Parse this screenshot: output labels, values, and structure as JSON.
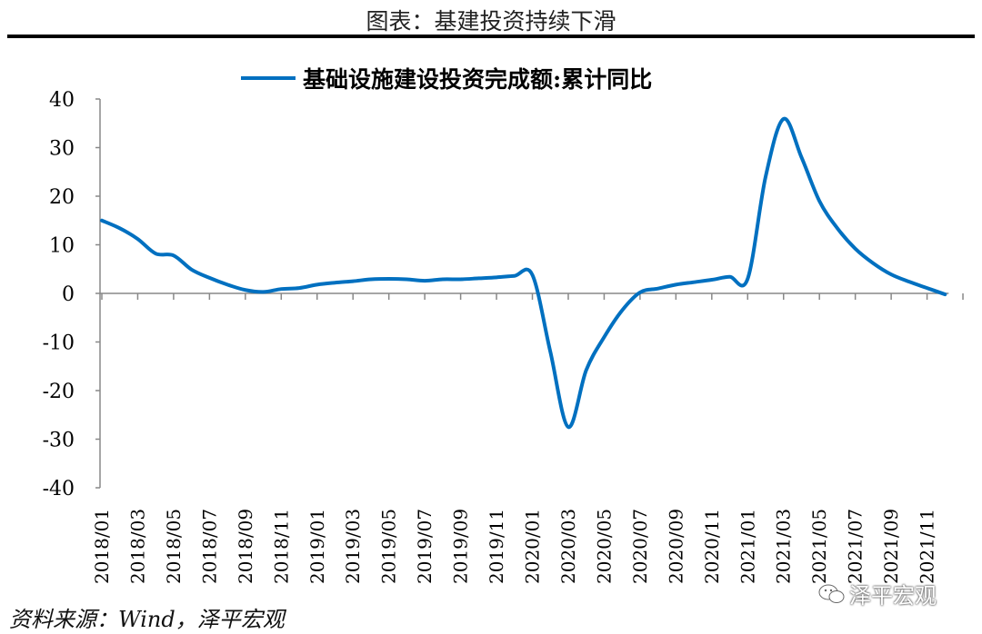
{
  "title": "图表：基建投资持续下滑",
  "source": "资料来源：Wind，泽平宏观",
  "watermark": "泽平宏观",
  "chart_data": {
    "type": "line",
    "title": "",
    "xlabel": "",
    "ylabel": "",
    "ylim": [
      -40,
      40
    ],
    "yticks": [
      40,
      30,
      20,
      10,
      0,
      -10,
      -20,
      -30,
      -40
    ],
    "legend": {
      "placement": "top-center",
      "entries": [
        "基础设施建设投资完成额:累计同比"
      ]
    },
    "grid": false,
    "color": "#0070C0",
    "x": [
      "2018/01",
      "2018/02",
      "2018/03",
      "2018/04",
      "2018/05",
      "2018/06",
      "2018/07",
      "2018/08",
      "2018/09",
      "2018/10",
      "2018/11",
      "2018/12",
      "2019/01",
      "2019/02",
      "2019/03",
      "2019/04",
      "2019/05",
      "2019/06",
      "2019/07",
      "2019/08",
      "2019/09",
      "2019/10",
      "2019/11",
      "2019/12",
      "2020/01",
      "2020/02",
      "2020/03",
      "2020/04",
      "2020/05",
      "2020/06",
      "2020/07",
      "2020/08",
      "2020/09",
      "2020/10",
      "2020/11",
      "2020/12",
      "2021/01",
      "2021/02",
      "2021/03",
      "2021/04",
      "2021/05",
      "2021/06",
      "2021/07",
      "2021/08",
      "2021/09",
      "2021/10",
      "2021/11",
      "2021/12"
    ],
    "xtick_labels": [
      "2018/01",
      "2018/03",
      "2018/05",
      "2018/07",
      "2018/09",
      "2018/11",
      "2019/01",
      "2019/03",
      "2019/05",
      "2019/07",
      "2019/09",
      "2019/11",
      "2020/01",
      "2020/03",
      "2020/05",
      "2020/07",
      "2020/09",
      "2020/11",
      "2021/01",
      "2021/03",
      "2021/05",
      "2021/07",
      "2021/09",
      "2021/11"
    ],
    "series": [
      {
        "name": "基础设施建设投资完成额:累计同比",
        "values": [
          15.0,
          13.4,
          11.2,
          8.2,
          7.8,
          4.9,
          3.2,
          1.8,
          0.7,
          0.3,
          0.9,
          1.1,
          1.8,
          2.2,
          2.5,
          2.9,
          3.0,
          2.9,
          2.6,
          2.9,
          2.9,
          3.1,
          3.3,
          3.6,
          3.8,
          -12.0,
          -27.5,
          -15.8,
          -9.0,
          -3.5,
          0.2,
          1.0,
          1.8,
          2.3,
          2.8,
          3.4,
          3.0,
          24.0,
          35.9,
          28.0,
          19.0,
          13.4,
          9.2,
          6.2,
          3.9,
          2.4,
          1.1,
          -0.2
        ]
      }
    ]
  }
}
